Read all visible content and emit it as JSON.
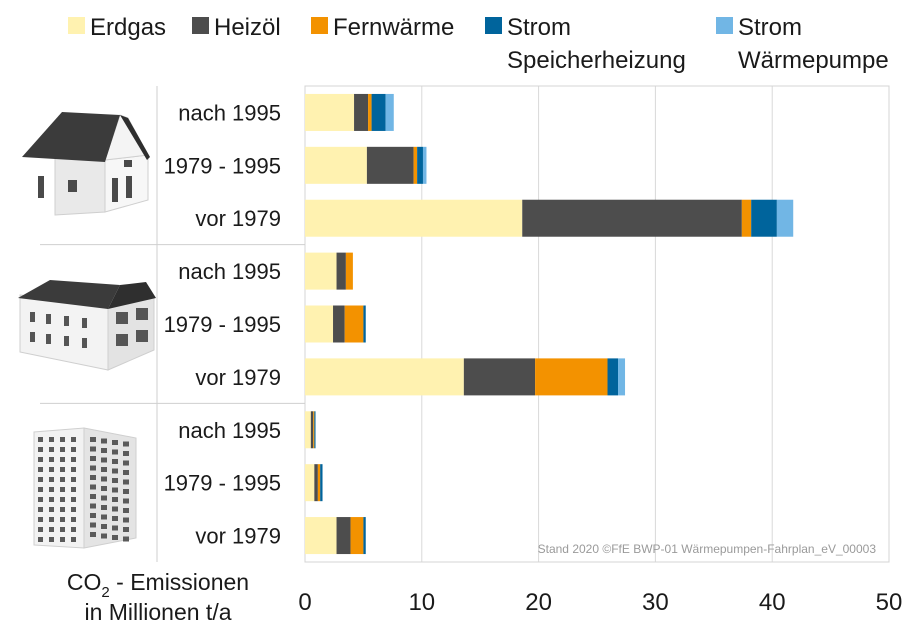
{
  "chart_data": {
    "type": "bar",
    "orientation": "horizontal",
    "stacked": true,
    "categories": [
      "nach 1995",
      "1979 - 1995",
      "vor 1979",
      "nach 1995",
      "1979 - 1995",
      "vor 1979",
      "nach 1995",
      "1979 - 1995",
      "vor 1979"
    ],
    "groups": [
      {
        "icon": "single-family-house-icon",
        "categories": [
          "nach 1995",
          "1979 - 1995",
          "vor 1979"
        ]
      },
      {
        "icon": "multi-family-house-icon",
        "categories": [
          "nach 1995",
          "1979 - 1995",
          "vor 1979"
        ]
      },
      {
        "icon": "apartment-block-icon",
        "categories": [
          "nach 1995",
          "1979 - 1995",
          "vor 1979"
        ]
      }
    ],
    "series": [
      {
        "name": "Erdgas",
        "color": "#FFF2B0",
        "values": [
          4.2,
          5.3,
          18.6,
          2.7,
          2.4,
          13.6,
          0.5,
          0.8,
          2.7
        ]
      },
      {
        "name": "Heizöl",
        "color": "#4D4D4D",
        "values": [
          1.2,
          4.0,
          18.8,
          0.8,
          1.0,
          6.1,
          0.2,
          0.3,
          1.2
        ]
      },
      {
        "name": "Fernwärme",
        "color": "#F39200",
        "values": [
          0.3,
          0.3,
          0.8,
          0.6,
          1.6,
          6.2,
          0.1,
          0.2,
          1.1
        ]
      },
      {
        "name": "Strom Speicherheizung",
        "color": "#00649C",
        "values": [
          1.2,
          0.5,
          2.2,
          0.0,
          0.2,
          0.9,
          0.1,
          0.2,
          0.2
        ]
      },
      {
        "name": "Strom Wärmepumpe",
        "color": "#71B6E5",
        "values": [
          0.7,
          0.3,
          1.4,
          0.0,
          0.0,
          0.6,
          0.0,
          0.0,
          0.0
        ]
      }
    ],
    "legend": {
      "items": [
        {
          "line1": "Erdgas",
          "line2": ""
        },
        {
          "line1": "Heizöl",
          "line2": ""
        },
        {
          "line1": "Fernwärme",
          "line2": ""
        },
        {
          "line1": "Strom",
          "line2": "Speicherheizung"
        },
        {
          "line1": "Strom",
          "line2": "Wärmepumpe"
        }
      ],
      "position": "top"
    },
    "xlim": [
      0,
      50
    ],
    "xticks": [
      0,
      10,
      20,
      30,
      40,
      50
    ],
    "xlabel": {
      "line1_pre": "CO",
      "line1_sub": "2",
      "line1_post": " - Emissionen",
      "line2": "in Millionen t/a"
    },
    "grid": "vertical",
    "credit": "Stand 2020 ©FfE BWP-01 Wärmepumpen-Fahrplan_eV_00003"
  }
}
